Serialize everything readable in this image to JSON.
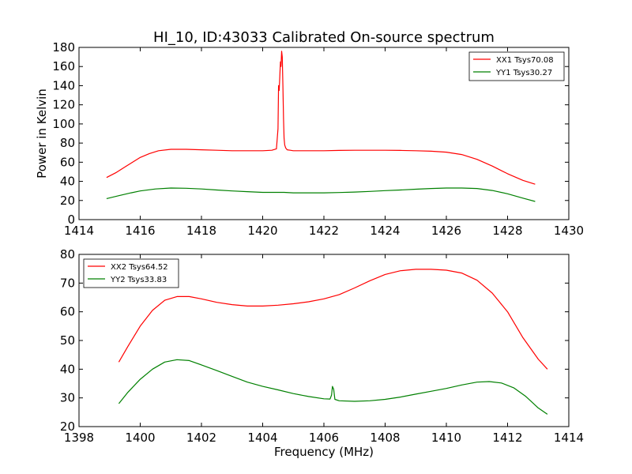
{
  "title": "HI_10, ID:43033 Calibrated On-source spectrum",
  "chart_data": [
    {
      "type": "line",
      "title": "HI_10, ID:43033 Calibrated On-source spectrum",
      "xlabel": "",
      "ylabel": "Power in Kelvin",
      "xlim": [
        1414,
        1430
      ],
      "ylim": [
        0,
        180
      ],
      "xticks": [
        1414,
        1416,
        1418,
        1420,
        1422,
        1424,
        1426,
        1428,
        1430
      ],
      "yticks": [
        0,
        20,
        40,
        60,
        80,
        100,
        120,
        140,
        160,
        180
      ],
      "grid": false,
      "legend": "top-right",
      "series": [
        {
          "name": "XX1 Tsys70.08",
          "color": "#ff0000",
          "x": [
            1414.9,
            1415.2,
            1415.5,
            1415.8,
            1416.0,
            1416.3,
            1416.6,
            1417.0,
            1417.5,
            1418.0,
            1418.5,
            1419.0,
            1419.5,
            1420.0,
            1420.3,
            1420.45,
            1420.5,
            1420.52,
            1420.54,
            1420.56,
            1420.58,
            1420.6,
            1420.62,
            1420.64,
            1420.66,
            1420.68,
            1420.7,
            1420.72,
            1420.75,
            1420.8,
            1420.9,
            1421.0,
            1421.5,
            1422.0,
            1422.5,
            1423.0,
            1423.5,
            1424.0,
            1424.5,
            1425.0,
            1425.5,
            1426.0,
            1426.5,
            1427.0,
            1427.5,
            1428.0,
            1428.5,
            1428.9
          ],
          "y": [
            44,
            49,
            55,
            61,
            65,
            69,
            72,
            73.5,
            73.5,
            73,
            72.5,
            72,
            72,
            72,
            72.5,
            74,
            95,
            140,
            135,
            150,
            165,
            160,
            176,
            170,
            140,
            105,
            85,
            78,
            75,
            73,
            72.5,
            72,
            72,
            72,
            72.3,
            72.5,
            72.5,
            72.5,
            72.3,
            72,
            71.5,
            70.5,
            68,
            63,
            56,
            48,
            41,
            37
          ]
        },
        {
          "name": "YY1 Tsys30.27",
          "color": "#008000",
          "x": [
            1414.9,
            1415.3,
            1415.7,
            1416.0,
            1416.5,
            1417.0,
            1417.5,
            1418.0,
            1418.5,
            1419.0,
            1419.5,
            1420.0,
            1420.5,
            1420.7,
            1421.0,
            1421.5,
            1422.0,
            1422.5,
            1423.0,
            1423.5,
            1424.0,
            1424.5,
            1425.0,
            1425.5,
            1426.0,
            1426.5,
            1427.0,
            1427.5,
            1428.0,
            1428.5,
            1428.9
          ],
          "y": [
            22,
            25,
            28,
            30,
            32,
            33,
            32.8,
            32,
            31,
            30,
            29.2,
            28.5,
            28.5,
            28.5,
            28,
            28,
            28,
            28.3,
            28.8,
            29.5,
            30.3,
            31,
            31.8,
            32.5,
            33,
            33,
            32.5,
            30.5,
            27,
            22.5,
            19
          ]
        }
      ]
    },
    {
      "type": "line",
      "title": "",
      "xlabel": "Frequency (MHz)",
      "ylabel": "",
      "xlim": [
        1398,
        1414
      ],
      "ylim": [
        20,
        80
      ],
      "xticks": [
        1398,
        1400,
        1402,
        1404,
        1406,
        1408,
        1410,
        1412,
        1414
      ],
      "yticks": [
        20,
        30,
        40,
        50,
        60,
        70,
        80
      ],
      "grid": false,
      "legend": "top-left",
      "series": [
        {
          "name": "XX2 Tsys64.52",
          "color": "#ff0000",
          "x": [
            1399.3,
            1399.6,
            1400.0,
            1400.4,
            1400.8,
            1401.2,
            1401.6,
            1402.0,
            1402.5,
            1403.0,
            1403.5,
            1404.0,
            1404.5,
            1405.0,
            1405.5,
            1406.0,
            1406.5,
            1407.0,
            1407.5,
            1408.0,
            1408.5,
            1409.0,
            1409.5,
            1410.0,
            1410.5,
            1411.0,
            1411.5,
            1412.0,
            1412.5,
            1413.0,
            1413.3
          ],
          "y": [
            42.5,
            48,
            55,
            60.5,
            64,
            65.3,
            65.3,
            64.5,
            63.3,
            62.5,
            62,
            62,
            62.3,
            62.8,
            63.5,
            64.5,
            66,
            68.3,
            70.8,
            73,
            74.3,
            74.8,
            74.8,
            74.5,
            73.5,
            71,
            66.5,
            60,
            51,
            43.5,
            40
          ]
        },
        {
          "name": "YY2 Tsys33.83",
          "color": "#008000",
          "x": [
            1399.3,
            1399.6,
            1400.0,
            1400.4,
            1400.8,
            1401.2,
            1401.6,
            1402.0,
            1402.5,
            1403.0,
            1403.5,
            1404.0,
            1404.5,
            1405.0,
            1405.5,
            1406.0,
            1406.2,
            1406.25,
            1406.28,
            1406.32,
            1406.36,
            1406.5,
            1407.0,
            1407.5,
            1408.0,
            1408.5,
            1409.0,
            1409.5,
            1410.0,
            1410.5,
            1411.0,
            1411.4,
            1411.8,
            1412.2,
            1412.6,
            1413.0,
            1413.3
          ],
          "y": [
            28,
            32,
            36.5,
            40,
            42.5,
            43.3,
            43,
            41.5,
            39.5,
            37.5,
            35.5,
            34,
            32.8,
            31.5,
            30.5,
            29.7,
            29.6,
            31,
            34,
            33,
            29.5,
            29,
            28.8,
            29,
            29.5,
            30.3,
            31.3,
            32.3,
            33.3,
            34.5,
            35.5,
            35.7,
            35.2,
            33.5,
            30.5,
            26.5,
            24.3
          ]
        }
      ]
    }
  ]
}
